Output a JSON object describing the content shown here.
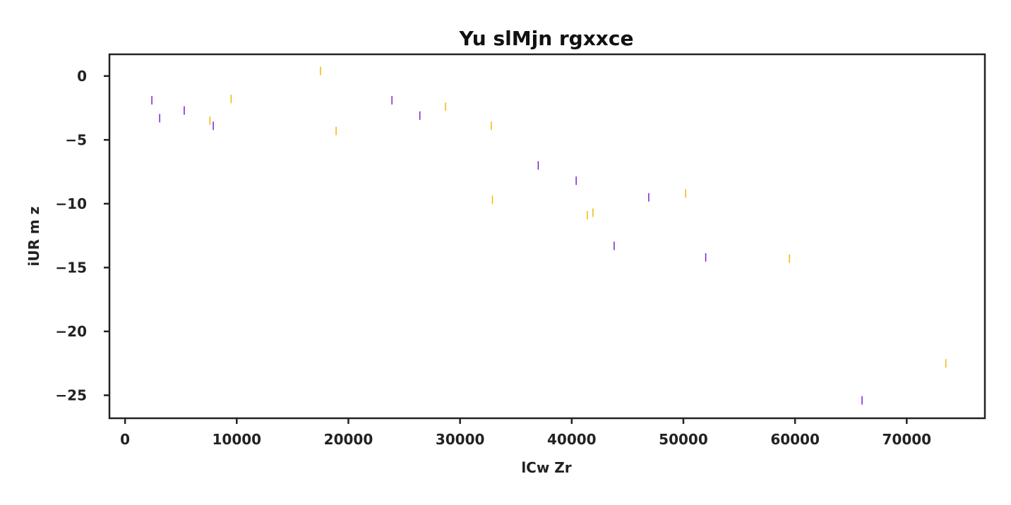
{
  "chart_data": {
    "type": "scatter",
    "title": "Yu slMjn rgxxce",
    "xlabel": "lCw Zr",
    "ylabel": "iUR m z",
    "xlim": [
      -1400,
      77000
    ],
    "ylim": [
      -26.8,
      1.7
    ],
    "xticks": [
      0,
      10000,
      20000,
      30000,
      40000,
      50000,
      60000,
      70000
    ],
    "yticks": [
      0,
      -5,
      -10,
      -15,
      -20,
      -25
    ],
    "xtick_labels": [
      "0",
      "10000",
      "20000",
      "30000",
      "40000",
      "50000",
      "60000",
      "70000"
    ],
    "ytick_labels": [
      "0",
      "−5",
      "−10",
      "−15",
      "−20",
      "−25"
    ],
    "marker": "vertical-line",
    "grid": false,
    "legend": "none",
    "series": [
      {
        "color": "#7b1fd6",
        "points": [
          [
            2400,
            -1.9
          ],
          [
            3100,
            -3.3
          ],
          [
            5300,
            -2.7
          ],
          [
            7900,
            -3.9
          ],
          [
            23900,
            -1.9
          ],
          [
            26400,
            -3.1
          ],
          [
            37000,
            -7.0
          ],
          [
            40400,
            -8.2
          ],
          [
            46900,
            -9.5
          ],
          [
            43800,
            -13.3
          ],
          [
            52000,
            -14.2
          ],
          [
            66000,
            -25.4
          ]
        ]
      },
      {
        "color": "#f2b705",
        "points": [
          [
            7600,
            -3.5
          ],
          [
            9500,
            -1.8
          ],
          [
            17500,
            0.4
          ],
          [
            18900,
            -4.3
          ],
          [
            28700,
            -2.4
          ],
          [
            32800,
            -3.9
          ],
          [
            32900,
            -9.7
          ],
          [
            41400,
            -10.9
          ],
          [
            41900,
            -10.7
          ],
          [
            50200,
            -9.2
          ],
          [
            59500,
            -14.3
          ],
          [
            73500,
            -22.5
          ]
        ]
      }
    ]
  }
}
